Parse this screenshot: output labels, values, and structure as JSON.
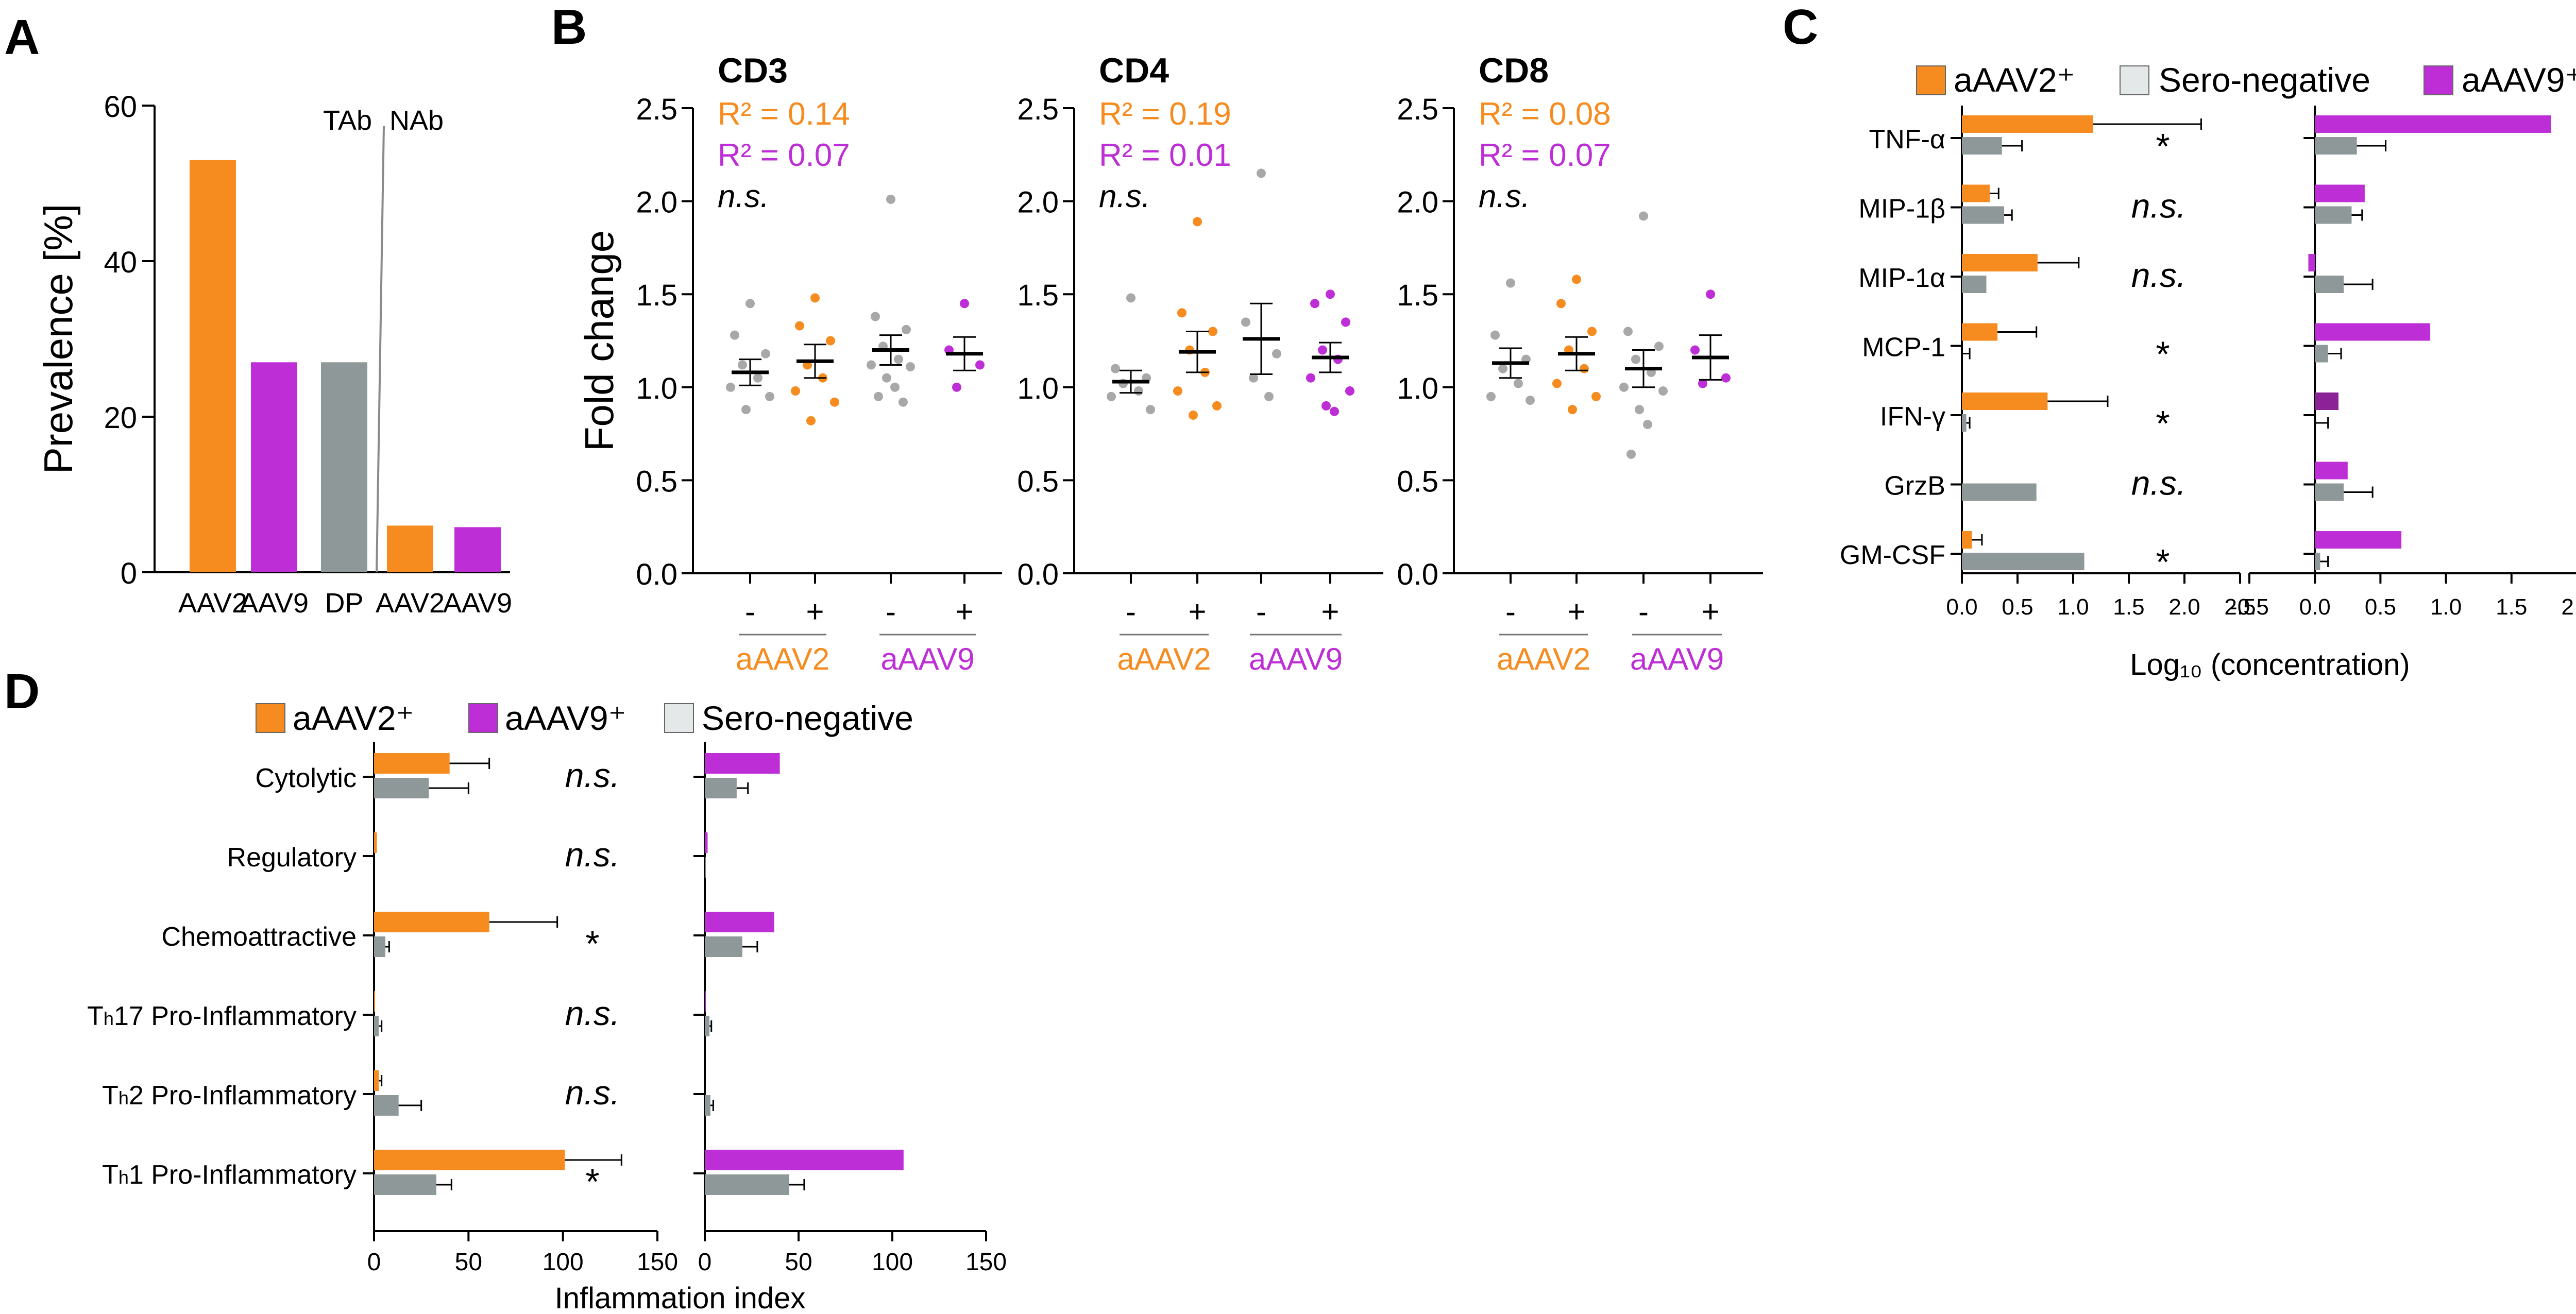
{
  "colors": {
    "orange": "#F68B1F",
    "purple": "#BE2ED6",
    "gray": "#8F9899",
    "grayLight": "#DADFDF",
    "sero": "#E4E8E8",
    "darkPurple": "#8B2296",
    "ptGray": "#A8A8A8",
    "axis": "#000000"
  },
  "panel_labels": {
    "a": "A",
    "b": "B",
    "c": "C",
    "d": "D"
  },
  "chart_data": [
    {
      "id": "A",
      "type": "bar",
      "ylabel": "Prevalence [%]",
      "ylim": [
        0,
        60
      ],
      "yticks": [
        0,
        20,
        40,
        60
      ],
      "categories": [
        "AAV2",
        "AAV9",
        "DP",
        "AAV2",
        "AAV9"
      ],
      "values": [
        53,
        27,
        27,
        6,
        5.8
      ],
      "colors": [
        "orange",
        "purple",
        "gray",
        "orange",
        "purple"
      ],
      "annotations": {
        "tab": "TAb",
        "nab": "NAb"
      }
    },
    {
      "id": "B",
      "type": "scatter",
      "ylabel": "Fold change",
      "ylim": [
        0,
        2.5
      ],
      "yticks": [
        0.0,
        0.5,
        1.0,
        1.5,
        2.0,
        2.5
      ],
      "xticks": [
        "-",
        "+",
        "-",
        "+"
      ],
      "groups": [
        "aAAV2",
        "aAAV9"
      ],
      "panels": [
        {
          "title": "CD3",
          "r2a": "R² = 0.14",
          "r2b": "R² = 0.07",
          "sig": "n.s.",
          "series": [
            {
              "color": "gray",
              "mean": 1.08,
              "sem": 0.07,
              "points": [
                1.45,
                1.28,
                1.18,
                1.12,
                1.05,
                1.0,
                0.95,
                0.88
              ]
            },
            {
              "color": "orange",
              "mean": 1.14,
              "sem": 0.09,
              "points": [
                1.48,
                1.33,
                1.25,
                1.12,
                1.05,
                0.98,
                0.92,
                0.82
              ]
            },
            {
              "color": "gray",
              "mean": 1.2,
              "sem": 0.08,
              "points": [
                2.01,
                1.38,
                1.31,
                1.22,
                1.15,
                1.12,
                1.11,
                1.05,
                1.0,
                0.95,
                0.92
              ]
            },
            {
              "color": "purple",
              "mean": 1.18,
              "sem": 0.09,
              "points": [
                1.45,
                1.2,
                1.12,
                1.0
              ]
            }
          ]
        },
        {
          "title": "CD4",
          "r2a": "R² = 0.19",
          "r2b": "R² = 0.01",
          "sig": "n.s.",
          "series": [
            {
              "color": "gray",
              "mean": 1.03,
              "sem": 0.06,
              "points": [
                1.48,
                1.1,
                1.05,
                1.02,
                0.98,
                0.95,
                0.88
              ]
            },
            {
              "color": "orange",
              "mean": 1.19,
              "sem": 0.11,
              "points": [
                1.89,
                1.4,
                1.3,
                1.2,
                1.08,
                0.98,
                0.9,
                0.85
              ]
            },
            {
              "color": "gray",
              "mean": 1.26,
              "sem": 0.19,
              "points": [
                2.15,
                1.35,
                1.18,
                1.05,
                0.95
              ]
            },
            {
              "color": "purple",
              "mean": 1.16,
              "sem": 0.08,
              "points": [
                1.5,
                1.45,
                1.35,
                1.2,
                1.15,
                1.05,
                0.98,
                0.9,
                0.87
              ]
            }
          ]
        },
        {
          "title": "CD8",
          "r2a": "R² = 0.08",
          "r2b": "R² = 0.07",
          "sig": "n.s.",
          "series": [
            {
              "color": "gray",
              "mean": 1.13,
              "sem": 0.08,
              "points": [
                1.56,
                1.28,
                1.15,
                1.1,
                1.02,
                0.95,
                0.93
              ]
            },
            {
              "color": "orange",
              "mean": 1.18,
              "sem": 0.09,
              "points": [
                1.58,
                1.45,
                1.3,
                1.2,
                1.1,
                1.02,
                0.95,
                0.88
              ]
            },
            {
              "color": "gray",
              "mean": 1.1,
              "sem": 0.1,
              "points": [
                1.92,
                1.3,
                1.22,
                1.15,
                1.08,
                1.0,
                0.98,
                0.88,
                0.8,
                0.64
              ]
            },
            {
              "color": "purple",
              "mean": 1.16,
              "sem": 0.12,
              "points": [
                1.5,
                1.2,
                1.05,
                1.02
              ]
            }
          ]
        }
      ]
    },
    {
      "id": "C",
      "type": "bar",
      "orientation": "horizontal",
      "xlabel": "Log₁₀ (concentration)",
      "legend": [
        {
          "label": "aAAV2⁺",
          "color": "orange"
        },
        {
          "label": "Sero-negative",
          "color": "sero"
        },
        {
          "label": "aAAV9⁺",
          "color": "purple"
        }
      ],
      "categories": [
        "TNF-α",
        "MIP-1β",
        "MIP-1α",
        "MCP-1",
        "IFN-γ",
        "GrzB",
        "GM-CSF"
      ],
      "significance": [
        "*",
        "n.s.",
        "n.s.",
        "*",
        "*",
        "n.s.",
        "*"
      ],
      "left": {
        "xlim": [
          0,
          2.5
        ],
        "xticks": [
          0.0,
          0.5,
          1.0,
          1.5,
          2.0,
          2.5
        ],
        "series": [
          {
            "name": "aAAV2⁺",
            "color": "orange",
            "values": [
              1.18,
              0.25,
              0.68,
              0.32,
              0.77,
              0.0,
              0.09
            ],
            "err": [
              0.97,
              0.08,
              0.37,
              0.35,
              0.54,
              0,
              0.09
            ]
          },
          {
            "name": "Sero-negative",
            "color": "gray",
            "values": [
              0.36,
              0.38,
              0.22,
              0.0,
              0.04,
              0.67,
              1.1
            ],
            "err": [
              0.18,
              0.07,
              0,
              0.07,
              0.03,
              0,
              0
            ]
          }
        ]
      },
      "right": {
        "xlim": [
          -0.5,
          2.0
        ],
        "xticks": [
          -0.5,
          0.0,
          0.5,
          1.0,
          1.5,
          2.0
        ],
        "series": [
          {
            "name": "aAAV9⁺",
            "color": "purple",
            "values": [
              1.8,
              0.38,
              -0.05,
              0.88,
              0.18,
              0.25,
              0.66
            ],
            "err": [
              0,
              0,
              0,
              0,
              0,
              0,
              0
            ]
          },
          {
            "name": "Sero-negative",
            "color": "gray",
            "values": [
              0.32,
              0.28,
              0.22,
              0.1,
              0.0,
              0.22,
              0.04
            ],
            "err": [
              0.22,
              0.08,
              0.22,
              0.1,
              0.1,
              0.22,
              0.06
            ]
          }
        ]
      }
    },
    {
      "id": "D",
      "type": "bar",
      "orientation": "horizontal",
      "xlabel": "Inflammation index",
      "legend": [
        {
          "label": "aAAV2⁺",
          "color": "orange"
        },
        {
          "label": "aAAV9⁺",
          "color": "purple"
        },
        {
          "label": "Sero-negative",
          "color": "sero"
        }
      ],
      "categories": [
        {
          "main": "Cytolytic",
          "sub": "",
          "rest": ""
        },
        {
          "main": "Regulatory",
          "sub": "",
          "rest": ""
        },
        {
          "main": "Chemoattractive",
          "sub": "",
          "rest": ""
        },
        {
          "main": "T",
          "sub": "h",
          "rest": "17 Pro-Inflammatory"
        },
        {
          "main": "T",
          "sub": "h",
          "rest": "2 Pro-Inflammatory"
        },
        {
          "main": "T",
          "sub": "h",
          "rest": "1 Pro-Inflammatory"
        }
      ],
      "significance": [
        "n.s.",
        "n.s.",
        "*",
        "n.s.",
        "n.s.",
        "*"
      ],
      "left": {
        "xlim": [
          0,
          150
        ],
        "xticks": [
          0,
          50,
          100,
          150
        ],
        "series": [
          {
            "name": "aAAV2⁺",
            "color": "orange",
            "values": [
              40,
              1.5,
              61,
              0.5,
              2.5,
              101
            ],
            "err": [
              21,
              0,
              36,
              0,
              1.5,
              30
            ]
          },
          {
            "name": "Sero-negative",
            "color": "gray",
            "values": [
              29,
              0,
              6,
              2.5,
              13,
              33
            ],
            "err": [
              21,
              0,
              2,
              1.5,
              12,
              8
            ]
          }
        ]
      },
      "right": {
        "xlim": [
          0,
          150
        ],
        "xticks": [
          0,
          50,
          100,
          150
        ],
        "series": [
          {
            "name": "aAAV9⁺",
            "color": "purple",
            "values": [
              40,
              1.5,
              37,
              0.5,
              0,
              106
            ],
            "err": [
              0,
              0,
              0,
              0,
              0,
              0
            ]
          },
          {
            "name": "Sero-negative",
            "color": "gray",
            "values": [
              17,
              0.5,
              20,
              2.5,
              3,
              45
            ],
            "err": [
              6,
              0,
              8,
              1,
              1.5,
              8
            ]
          }
        ]
      }
    }
  ]
}
